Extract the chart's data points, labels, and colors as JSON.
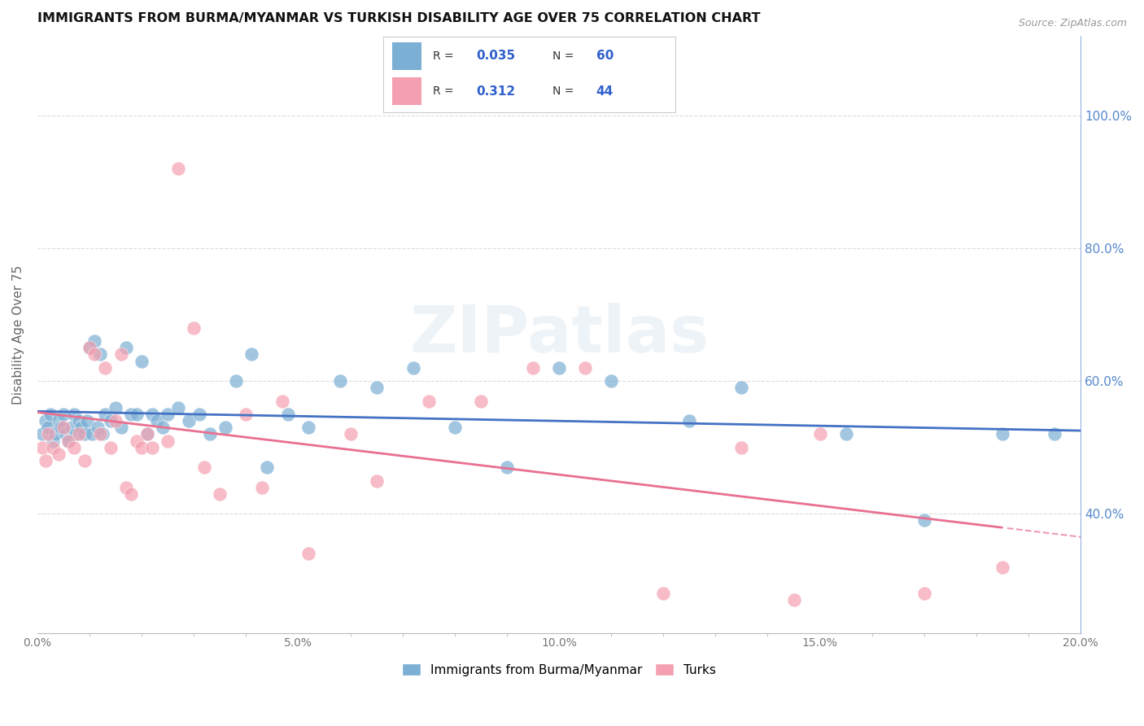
{
  "title": "IMMIGRANTS FROM BURMA/MYANMAR VS TURKISH DISABILITY AGE OVER 75 CORRELATION CHART",
  "source": "Source: ZipAtlas.com",
  "ylabel": "Disability Age Over 75",
  "x_tick_labels": [
    "0.0%",
    "5.0%",
    "10.0%",
    "15.0%",
    "20.0%"
  ],
  "x_tick_positions": [
    0.0,
    5.0,
    10.0,
    15.0,
    20.0
  ],
  "y_tick_labels": [
    "40.0%",
    "60.0%",
    "80.0%",
    "100.0%"
  ],
  "y_tick_positions": [
    40.0,
    60.0,
    80.0,
    100.0
  ],
  "xlim": [
    0.0,
    20.0
  ],
  "ylim": [
    22.0,
    112.0
  ],
  "legend_entries": [
    "Immigrants from Burma/Myanmar",
    "Turks"
  ],
  "r_blue": 0.035,
  "n_blue": 60,
  "r_pink": 0.312,
  "n_pink": 44,
  "color_blue": "#7BAFD4",
  "color_pink": "#F4A0B0",
  "color_blue_line": "#4472C4",
  "color_pink_line": "#E87090",
  "color_blue_text": "#3060CC",
  "color_right_axis": "#5588CC",
  "background": "#FFFFFF",
  "grid_color": "#DDDDDD",
  "watermark": "ZIPatlas",
  "blue_scatter_x": [
    0.1,
    0.15,
    0.2,
    0.25,
    0.3,
    0.35,
    0.4,
    0.45,
    0.5,
    0.55,
    0.6,
    0.65,
    0.7,
    0.75,
    0.8,
    0.85,
    0.9,
    0.95,
    1.0,
    1.05,
    1.1,
    1.15,
    1.2,
    1.25,
    1.3,
    1.4,
    1.5,
    1.6,
    1.7,
    1.8,
    1.9,
    2.0,
    2.1,
    2.2,
    2.3,
    2.4,
    2.5,
    2.7,
    2.9,
    3.1,
    3.3,
    3.6,
    3.8,
    4.1,
    4.4,
    4.8,
    5.2,
    5.8,
    6.5,
    7.2,
    8.0,
    9.0,
    10.0,
    11.0,
    12.5,
    13.5,
    15.5,
    17.0,
    18.5,
    19.5
  ],
  "blue_scatter_y": [
    52,
    54,
    53,
    55,
    51,
    52,
    54,
    53,
    55,
    52,
    51,
    53,
    55,
    52,
    54,
    53,
    52,
    54,
    65,
    52,
    66,
    53,
    64,
    52,
    55,
    54,
    56,
    53,
    65,
    55,
    55,
    63,
    52,
    55,
    54,
    53,
    55,
    56,
    54,
    55,
    52,
    53,
    60,
    64,
    47,
    55,
    53,
    60,
    59,
    62,
    53,
    47,
    62,
    60,
    54,
    59,
    52,
    39,
    52,
    52
  ],
  "pink_scatter_x": [
    0.1,
    0.15,
    0.2,
    0.3,
    0.4,
    0.5,
    0.6,
    0.7,
    0.8,
    0.9,
    1.0,
    1.1,
    1.2,
    1.3,
    1.4,
    1.5,
    1.6,
    1.7,
    1.8,
    1.9,
    2.0,
    2.1,
    2.2,
    2.5,
    2.7,
    3.0,
    3.2,
    3.5,
    4.0,
    4.3,
    4.7,
    5.2,
    6.0,
    6.5,
    7.5,
    8.5,
    9.5,
    10.5,
    12.0,
    13.5,
    14.5,
    15.0,
    17.0,
    18.5
  ],
  "pink_scatter_y": [
    50,
    48,
    52,
    50,
    49,
    53,
    51,
    50,
    52,
    48,
    65,
    64,
    52,
    62,
    50,
    54,
    64,
    44,
    43,
    51,
    50,
    52,
    50,
    51,
    92,
    68,
    47,
    43,
    55,
    44,
    57,
    34,
    52,
    45,
    57,
    57,
    62,
    62,
    28,
    50,
    27,
    52,
    28,
    32
  ]
}
